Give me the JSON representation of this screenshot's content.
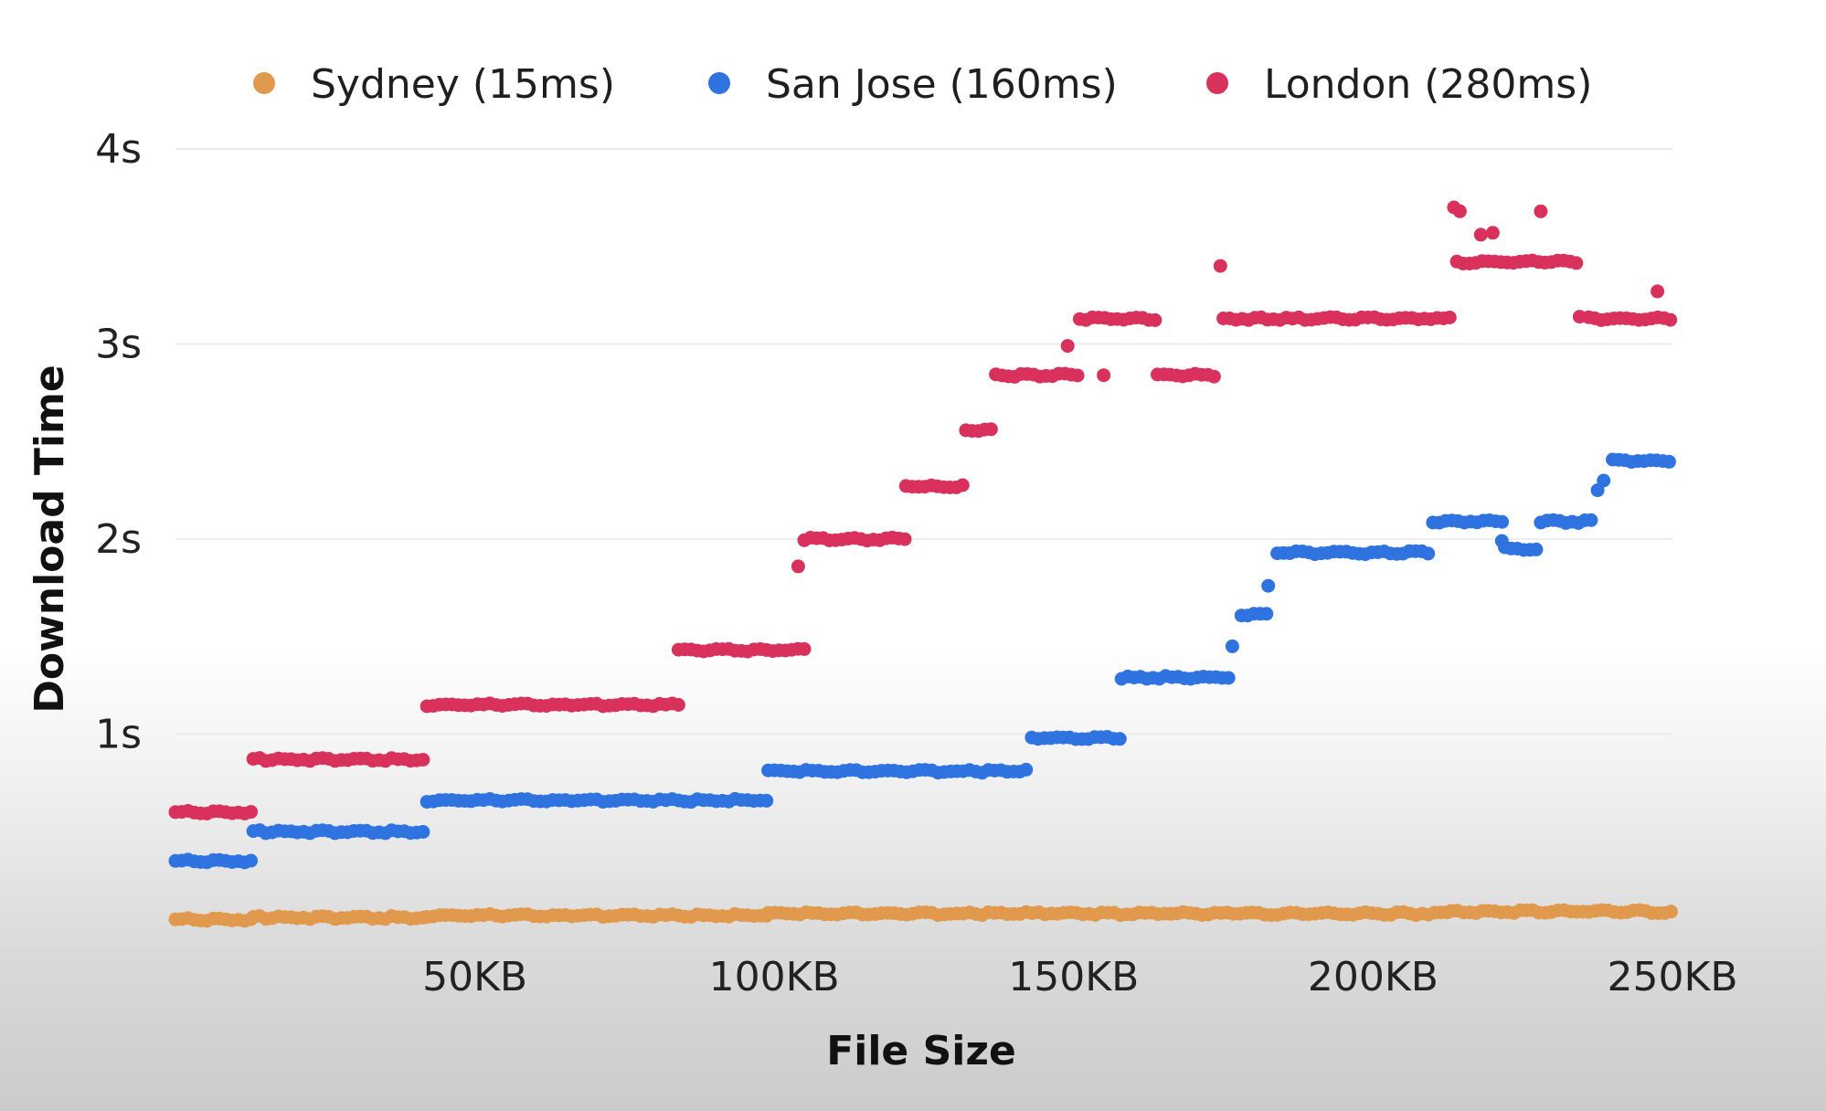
{
  "chart_data": {
    "type": "scatter",
    "title": "",
    "xlabel": "File Size",
    "ylabel": "Download Time",
    "xlim": [
      0,
      250
    ],
    "ylim": [
      0,
      4
    ],
    "x_ticks": [
      {
        "value": 50,
        "label": "50KB"
      },
      {
        "value": 100,
        "label": "100KB"
      },
      {
        "value": 150,
        "label": "150KB"
      },
      {
        "value": 200,
        "label": "200KB"
      },
      {
        "value": 250,
        "label": "250KB"
      }
    ],
    "y_ticks": [
      {
        "value": 1,
        "label": "1s"
      },
      {
        "value": 2,
        "label": "2s"
      },
      {
        "value": 3,
        "label": "3s"
      },
      {
        "value": 4,
        "label": "4s"
      }
    ],
    "grid": true,
    "legend_position": "top",
    "series": [
      {
        "name": "Sydney (15ms)",
        "color": "#e19a4d",
        "segments": [
          {
            "x0": 0,
            "x1": 13,
            "y": 0.05
          },
          {
            "x0": 13,
            "x1": 42,
            "y": 0.06
          },
          {
            "x0": 42,
            "x1": 99,
            "y": 0.07
          },
          {
            "x0": 99,
            "x1": 213,
            "y": 0.08
          },
          {
            "x0": 213,
            "x1": 250,
            "y": 0.09
          }
        ],
        "points": []
      },
      {
        "name": "San Jose (160ms)",
        "color": "#2f73e0",
        "segments": [
          {
            "x0": 0,
            "x1": 13,
            "y": 0.35
          },
          {
            "x0": 13,
            "x1": 42,
            "y": 0.5
          },
          {
            "x0": 42,
            "x1": 99,
            "y": 0.66
          },
          {
            "x0": 99,
            "x1": 143,
            "y": 0.81
          },
          {
            "x0": 143,
            "x1": 158,
            "y": 0.98
          },
          {
            "x0": 158,
            "x1": 176,
            "y": 1.29
          },
          {
            "x0": 178,
            "x1": 183,
            "y": 1.61
          },
          {
            "x0": 184,
            "x1": 210,
            "y": 1.93
          },
          {
            "x0": 210,
            "x1": 222,
            "y": 2.09
          },
          {
            "x0": 222,
            "x1": 228,
            "y": 1.95
          },
          {
            "x0": 228,
            "x1": 237,
            "y": 2.09
          },
          {
            "x0": 240,
            "x1": 250,
            "y": 2.4
          }
        ],
        "points": [
          {
            "x": 176.5,
            "y": 1.45
          },
          {
            "x": 182.5,
            "y": 1.76
          },
          {
            "x": 221.5,
            "y": 1.99
          },
          {
            "x": 237.5,
            "y": 2.25
          },
          {
            "x": 238.5,
            "y": 2.3
          }
        ]
      },
      {
        "name": "London (280ms)",
        "color": "#d8315b",
        "segments": [
          {
            "x0": 0,
            "x1": 13,
            "y": 0.6
          },
          {
            "x0": 13,
            "x1": 42,
            "y": 0.87
          },
          {
            "x0": 42,
            "x1": 84,
            "y": 1.15
          },
          {
            "x0": 84,
            "x1": 105,
            "y": 1.43
          },
          {
            "x0": 105,
            "x1": 122,
            "y": 2.0
          },
          {
            "x0": 122,
            "x1": 132,
            "y": 2.27
          },
          {
            "x0": 132,
            "x1": 137,
            "y": 2.56
          },
          {
            "x0": 137,
            "x1": 151,
            "y": 2.84
          },
          {
            "x0": 151,
            "x1": 164,
            "y": 3.13
          },
          {
            "x0": 164,
            "x1": 174,
            "y": 2.84
          },
          {
            "x0": 175,
            "x1": 213,
            "y": 3.13
          },
          {
            "x0": 214,
            "x1": 234,
            "y": 3.42
          },
          {
            "x0": 236,
            "x1": 250,
            "y": 3.13
          }
        ],
        "points": [
          {
            "x": 104,
            "y": 1.86
          },
          {
            "x": 149,
            "y": 2.99
          },
          {
            "x": 155,
            "y": 2.84
          },
          {
            "x": 174.5,
            "y": 3.4
          },
          {
            "x": 213.5,
            "y": 3.7
          },
          {
            "x": 214.5,
            "y": 3.68
          },
          {
            "x": 218,
            "y": 3.56
          },
          {
            "x": 220,
            "y": 3.57
          },
          {
            "x": 228,
            "y": 3.68
          },
          {
            "x": 234.5,
            "y": 3.14
          },
          {
            "x": 247.5,
            "y": 3.27
          }
        ]
      }
    ]
  }
}
